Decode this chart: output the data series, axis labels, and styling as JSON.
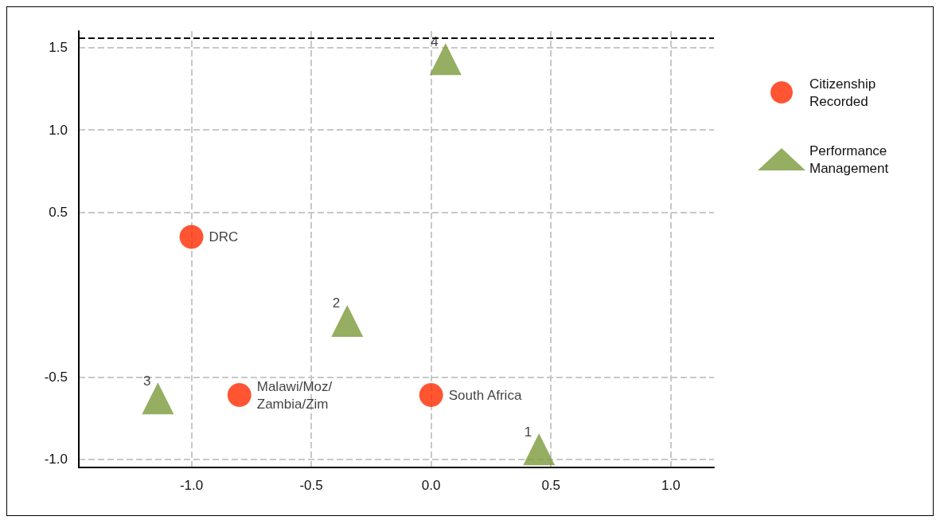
{
  "chart_data": {
    "type": "scatter",
    "series": [
      {
        "name": "Citizenship Recorded",
        "color": "#ff2a00",
        "marker": "circle",
        "x": [
          -1.0,
          -0.8,
          0.0
        ],
        "values": [
          0.35,
          -0.61,
          -0.61
        ]
      },
      {
        "name": "Performance Management",
        "color": "#7a9a3a",
        "marker": "triangle",
        "x": [
          0.45,
          -0.35,
          -1.14,
          0.06
        ],
        "values": [
          -0.94,
          -0.16,
          -0.63,
          1.43
        ]
      }
    ],
    "xlim": [
      -1.47,
      1.18
    ],
    "xticks": [
      {
        "value": -1,
        "label": "-1.0"
      },
      -0.5,
      {
        "value": 0,
        "label": "0.0"
      },
      0.5,
      {
        "value": 1,
        "label": "1.0"
      }
    ],
    "ylim": [
      -1.05,
      1.6
    ],
    "yticks": [
      {
        "value": -1,
        "label": "-1.0"
      },
      -0.5,
      0.5,
      {
        "value": 1,
        "label": "1.0"
      },
      1.5
    ],
    "grid": true,
    "legend": "right",
    "ref_lines": [
      {
        "axis": "y",
        "value": 1.56,
        "label": null,
        "color": "#000000",
        "line_style": "dashed"
      }
    ],
    "annotations": [
      {
        "text": "DRC",
        "x": -1.0,
        "y": 0.35
      },
      {
        "text": "Malawi/Moz/\nZambia/Zim",
        "x": -0.8,
        "y": -0.61
      },
      {
        "text": "South Africa",
        "x": 0.0,
        "y": -0.61
      },
      {
        "text": "1",
        "x": 0.45,
        "y": -0.94
      },
      {
        "text": "2",
        "x": -0.35,
        "y": -0.16
      },
      {
        "text": "3",
        "x": -1.14,
        "y": -0.63
      },
      {
        "text": "4",
        "x": 0.06,
        "y": 1.43
      }
    ]
  }
}
